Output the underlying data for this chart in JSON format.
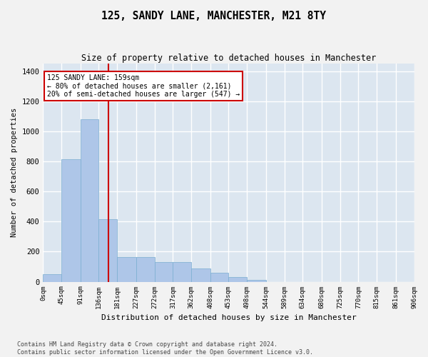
{
  "title": "125, SANDY LANE, MANCHESTER, M21 8TY",
  "subtitle": "Size of property relative to detached houses in Manchester",
  "xlabel": "Distribution of detached houses by size in Manchester",
  "ylabel": "Number of detached properties",
  "bar_color": "#aec6e8",
  "bar_edge_color": "#7aaed0",
  "background_color": "#dce6f0",
  "grid_color": "#ffffff",
  "property_size": 159,
  "property_line_color": "#cc0000",
  "annotation_text": "125 SANDY LANE: 159sqm\n← 80% of detached houses are smaller (2,161)\n20% of semi-detached houses are larger (547) →",
  "annotation_box_color": "#ffffff",
  "annotation_box_edge_color": "#cc0000",
  "bin_edges": [
    0,
    45,
    91,
    136,
    181,
    227,
    272,
    317,
    362,
    408,
    453,
    498,
    544,
    589,
    634,
    680,
    725,
    770,
    815,
    861,
    906
  ],
  "bar_heights": [
    50,
    815,
    1080,
    415,
    165,
    165,
    130,
    130,
    90,
    60,
    30,
    10,
    0,
    0,
    0,
    0,
    0,
    0,
    0,
    0
  ],
  "ylim": [
    0,
    1450
  ],
  "yticks": [
    0,
    200,
    400,
    600,
    800,
    1000,
    1200,
    1400
  ],
  "footer_text": "Contains HM Land Registry data © Crown copyright and database right 2024.\nContains public sector information licensed under the Open Government Licence v3.0.",
  "tick_labels": [
    "0sqm",
    "45sqm",
    "91sqm",
    "136sqm",
    "181sqm",
    "227sqm",
    "272sqm",
    "317sqm",
    "362sqm",
    "408sqm",
    "453sqm",
    "498sqm",
    "544sqm",
    "589sqm",
    "634sqm",
    "680sqm",
    "725sqm",
    "770sqm",
    "815sqm",
    "861sqm",
    "906sqm"
  ],
  "fig_width": 6.0,
  "fig_height": 5.0,
  "fig_dpi": 100
}
